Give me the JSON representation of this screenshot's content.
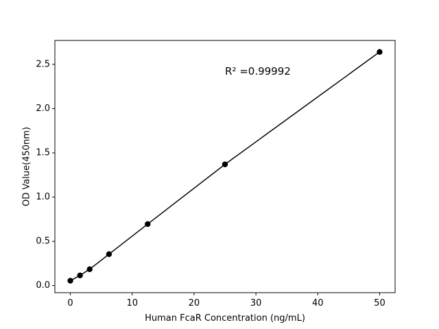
{
  "chart_data": {
    "type": "line",
    "xlabel": "Human FcaR Concentration (ng/mL)",
    "ylabel": "OD Value(450nm)",
    "annotation": "R² =0.99992",
    "x": [
      0,
      1.5625,
      3.125,
      6.25,
      12.5,
      25,
      50
    ],
    "series": [
      {
        "color": "#000000",
        "values": [
          0.055,
          0.115,
          0.185,
          0.355,
          0.695,
          1.37,
          2.64
        ]
      }
    ],
    "xlim": [
      -2.5,
      52.5
    ],
    "ylim": [
      -0.08,
      2.77
    ],
    "xticks": [
      0,
      10,
      20,
      30,
      40,
      50
    ],
    "yticks": [
      {
        "value": 0,
        "label": "0.0"
      },
      {
        "value": 0.5,
        "label": "0.5"
      },
      {
        "value": 1,
        "label": "1.0"
      },
      {
        "value": 1.5,
        "label": "1.5"
      },
      {
        "value": 2,
        "label": "2.0"
      },
      {
        "value": 2.5,
        "label": "2.5"
      }
    ],
    "grid": false
  }
}
